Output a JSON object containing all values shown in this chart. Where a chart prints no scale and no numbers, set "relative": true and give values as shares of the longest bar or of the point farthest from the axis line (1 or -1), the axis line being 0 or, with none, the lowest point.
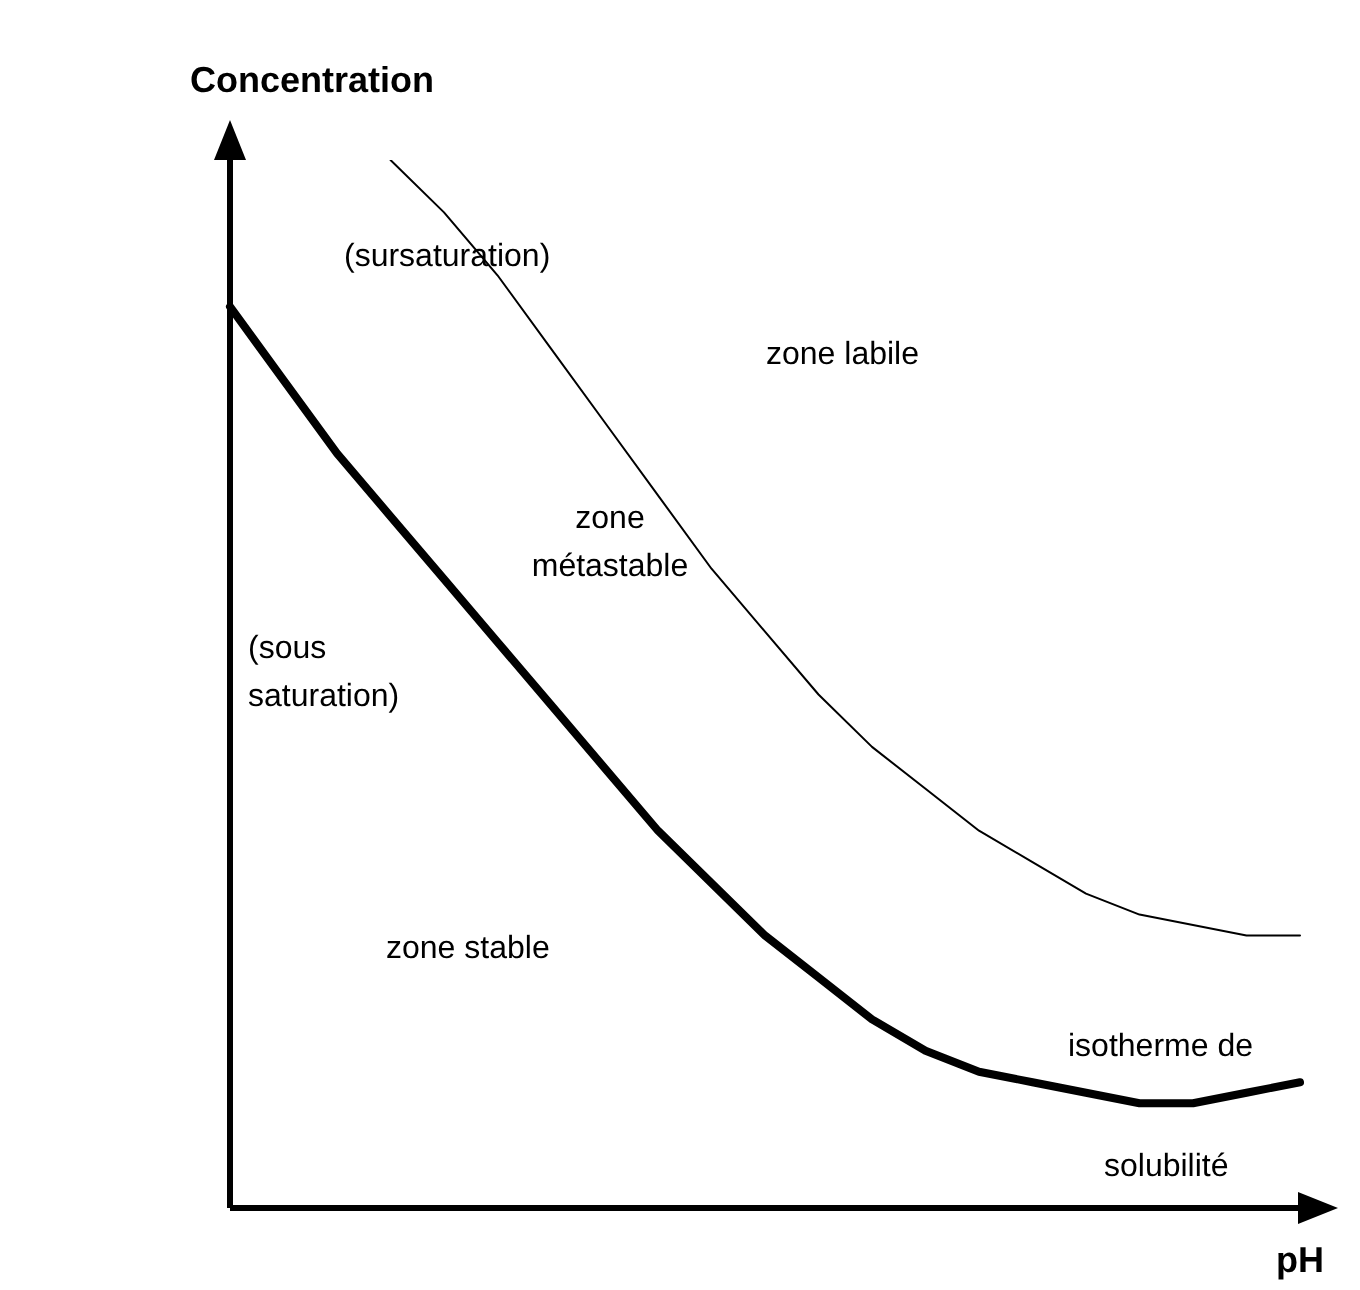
{
  "chart_data": {
    "type": "line",
    "relative": true,
    "ylabel": "Concentration",
    "xlabel": "pH",
    "marker": "none",
    "line_style": "solid",
    "categories": [
      null,
      null,
      null,
      null,
      null,
      null,
      null,
      null,
      null,
      null,
      null,
      null,
      null,
      null,
      null,
      null,
      null,
      null,
      null,
      null,
      null
    ],
    "series": [
      {
        "color": "#000000",
        "values": [
          0.86,
          0.79,
          0.72,
          0.66,
          0.6,
          0.54,
          0.48,
          0.42,
          0.36,
          0.31,
          0.26,
          0.22,
          0.18,
          0.15,
          0.13,
          0.12,
          0.11,
          0.1,
          0.1,
          0.11,
          0.12
        ]
      },
      {
        "color": "#000000",
        "values": [
          null,
          null,
          null,
          1,
          0.95,
          0.89,
          0.82,
          0.75,
          0.68,
          0.61,
          0.55,
          0.49,
          0.44,
          0.4,
          0.36,
          0.33,
          0.3,
          0.28,
          0.27,
          0.26,
          0.26
        ]
      }
    ],
    "annotations": [
      "(sursaturation)",
      "zone labile",
      "zone métastable",
      "(sous saturation)",
      "zone stable",
      "isotherme de",
      "solubilité"
    ]
  }
}
